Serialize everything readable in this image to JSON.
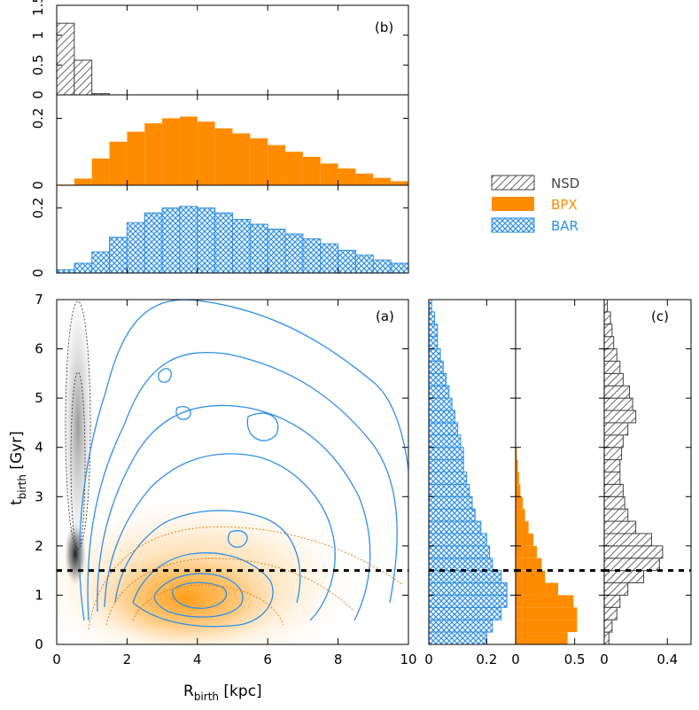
{
  "colors": {
    "nsd": "#444444",
    "bpx": "#ff8c00",
    "bar": "#2f8fe6",
    "line": "#000000"
  },
  "chart_data": {
    "type": "histogram+contour",
    "legend": [
      {
        "name": "NSD",
        "color": "#444444",
        "pattern": "hatch"
      },
      {
        "name": "BPX",
        "color": "#ff8c00",
        "pattern": "solid"
      },
      {
        "name": "BAR",
        "color": "#2f8fe6",
        "pattern": "crosshatch"
      }
    ],
    "panel_a": {
      "label": "(a)",
      "xlabel": "R",
      "xlabel_sub": "birth",
      "xlabel_unit": " [kpc]",
      "ylabel": "t",
      "ylabel_sub": "birth",
      "ylabel_unit": " [Gyr]",
      "xlim": [
        0,
        10
      ],
      "ylim": [
        0,
        7
      ],
      "xticks": [
        0,
        2,
        4,
        6,
        8,
        10
      ],
      "yticks": [
        0,
        1,
        2,
        3,
        4,
        5,
        6,
        7
      ],
      "hline_y": 1.5
    },
    "panel_b": {
      "label": "(b)",
      "bin_edges": [
        0,
        0.5,
        1,
        1.5,
        2,
        2.5,
        3,
        3.5,
        4,
        4.5,
        5,
        5.5,
        6,
        6.5,
        7,
        7.5,
        8,
        8.5,
        9,
        9.5,
        10
      ],
      "NSD": {
        "ylim": [
          0,
          1.5
        ],
        "yticks": [
          0,
          0.5,
          1,
          1.5
        ],
        "values": [
          1.2,
          0.58,
          0.02,
          0,
          0,
          0,
          0,
          0,
          0,
          0,
          0,
          0,
          0,
          0,
          0,
          0,
          0,
          0,
          0,
          0
        ]
      },
      "BPX": {
        "ylim": [
          0,
          0.27
        ],
        "yticks": [
          0,
          0.2
        ],
        "values": [
          0.002,
          0.02,
          0.08,
          0.13,
          0.16,
          0.185,
          0.2,
          0.205,
          0.19,
          0.17,
          0.155,
          0.14,
          0.12,
          0.1,
          0.085,
          0.065,
          0.05,
          0.035,
          0.022,
          0.012
        ]
      },
      "BAR": {
        "ylim": [
          0,
          0.27
        ],
        "yticks": [
          0,
          0.2
        ],
        "values": [
          0.01,
          0.03,
          0.065,
          0.11,
          0.155,
          0.185,
          0.2,
          0.205,
          0.2,
          0.185,
          0.165,
          0.15,
          0.135,
          0.12,
          0.105,
          0.09,
          0.07,
          0.055,
          0.04,
          0.03
        ]
      }
    },
    "panel_c": {
      "label": "(c)",
      "bin_edges": [
        0,
        0.25,
        0.5,
        0.75,
        1,
        1.25,
        1.5,
        1.75,
        2,
        2.25,
        2.5,
        2.75,
        3,
        3.25,
        3.5,
        3.75,
        4,
        4.25,
        4.5,
        4.75,
        5,
        5.25,
        5.5,
        5.75,
        6,
        6.25,
        6.5,
        6.75,
        7
      ],
      "BAR": {
        "xlim": [
          0,
          0.3
        ],
        "xticks": [
          0,
          0.2
        ],
        "values": [
          0.2,
          0.22,
          0.25,
          0.27,
          0.27,
          0.25,
          0.22,
          0.21,
          0.2,
          0.18,
          0.16,
          0.15,
          0.14,
          0.13,
          0.12,
          0.12,
          0.11,
          0.1,
          0.09,
          0.08,
          0.07,
          0.06,
          0.05,
          0.04,
          0.03,
          0.03,
          0.02,
          0.01
        ]
      },
      "BPX": {
        "xlim": [
          0,
          0.75
        ],
        "xticks": [
          0,
          0.5
        ],
        "values": [
          0.44,
          0.52,
          0.52,
          0.49,
          0.36,
          0.25,
          0.22,
          0.18,
          0.15,
          0.11,
          0.08,
          0.06,
          0.04,
          0.03,
          0.02,
          0.01,
          0,
          0,
          0,
          0,
          0,
          0,
          0,
          0,
          0,
          0,
          0,
          0
        ]
      },
      "NSD": {
        "xlim": [
          0,
          0.55
        ],
        "xticks": [
          0,
          0.4
        ],
        "values": [
          0.03,
          0.05,
          0.08,
          0.1,
          0.15,
          0.25,
          0.35,
          0.37,
          0.3,
          0.2,
          0.15,
          0.13,
          0.12,
          0.1,
          0.1,
          0.11,
          0.12,
          0.15,
          0.2,
          0.18,
          0.16,
          0.12,
          0.1,
          0.08,
          0.06,
          0.05,
          0.04,
          0.02
        ]
      }
    }
  }
}
